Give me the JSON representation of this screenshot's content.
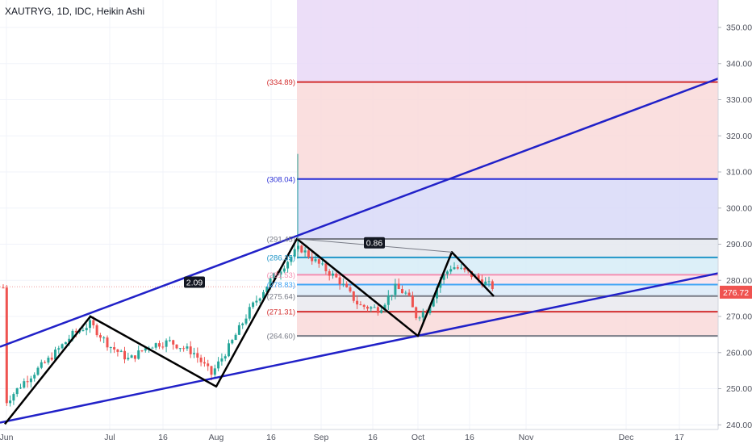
{
  "header": {
    "title": "XAUTRYG, 1D, IDC, Heikin Ashi"
  },
  "chart_data": {
    "type": "candlestick",
    "style": "Heikin Ashi",
    "symbol": "XAUTRYG",
    "interval": "1D",
    "exchange": "IDC",
    "ylim": [
      240,
      356
    ],
    "y_ticks": [
      "240.00",
      "250.00",
      "260.00",
      "270.00",
      "280.00",
      "290.00",
      "300.00",
      "310.00",
      "320.00",
      "330.00",
      "340.00",
      "350.00"
    ],
    "x_ticks": [
      "Jun",
      "Jul",
      "16",
      "Aug",
      "16",
      "Sep",
      "16",
      "Oct",
      "16",
      "Nov",
      "Dec",
      "17"
    ],
    "last_price": "276.72",
    "last_price_color": "#ef5350",
    "fib_levels": [
      {
        "label": "(334.89)",
        "value": 334.89,
        "color": "#d32f2f"
      },
      {
        "label": "(308.04)",
        "value": 308.04,
        "color": "#2a2fd6"
      },
      {
        "label": "(291.45)",
        "value": 291.45,
        "color": "#787b86"
      },
      {
        "label": "(286.35)",
        "value": 286.35,
        "color": "#2196c8"
      },
      {
        "label": "(281.53)",
        "value": 281.53,
        "color": "#f48fb1"
      },
      {
        "label": "(278.83)",
        "value": 278.83,
        "color": "#42a5f5"
      },
      {
        "label": "(275.64)",
        "value": 275.64,
        "color": "#787b86"
      },
      {
        "label": "(271.31)",
        "value": 271.31,
        "color": "#d32f2f"
      },
      {
        "label": "(264.60)",
        "value": 264.6,
        "color": "#787b86"
      }
    ],
    "annotations": [
      {
        "text": "2.09"
      },
      {
        "text": "0.86"
      }
    ],
    "colors": {
      "up": "#26a69a",
      "down": "#ef5350",
      "channel": "#2121c8",
      "pattern": "#000000"
    }
  }
}
